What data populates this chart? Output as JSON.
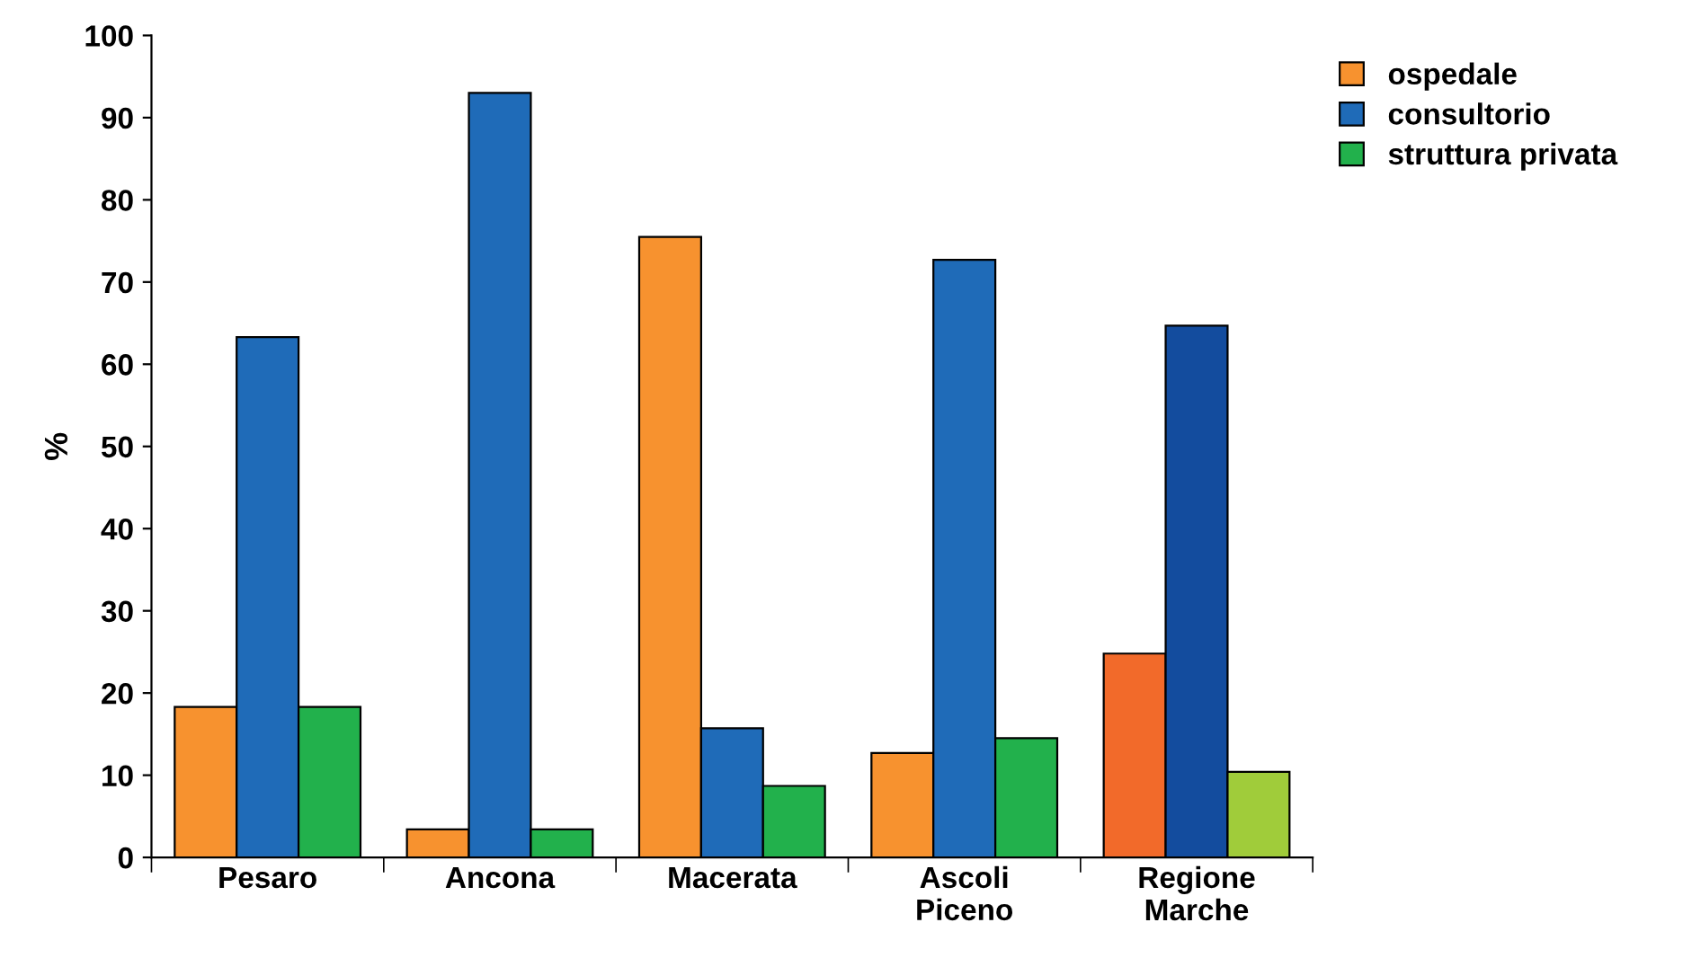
{
  "chart_data": {
    "type": "bar",
    "ylabel": "%",
    "categories": [
      "Pesaro",
      "Ancona",
      "Macerata",
      "Ascoli\nPiceno",
      "Regione\nMarche"
    ],
    "series": [
      {
        "name": "ospedale",
        "color": "#f7922f",
        "colors": [
          "#f7922f",
          "#f7922f",
          "#f7922f",
          "#f7922f",
          "#f26a2a"
        ],
        "values": [
          18.3,
          3.4,
          75.5,
          12.7,
          24.8
        ]
      },
      {
        "name": "consultorio",
        "color": "#1f6bb8",
        "colors": [
          "#1f6bb8",
          "#1f6bb8",
          "#1f6bb8",
          "#1f6bb8",
          "#134c9e"
        ],
        "values": [
          63.3,
          93.0,
          15.7,
          72.7,
          64.7
        ]
      },
      {
        "name": "struttura privata",
        "color": "#22b14c",
        "colors": [
          "#22b14c",
          "#22b14c",
          "#22b14c",
          "#22b14c",
          "#a0cc3a"
        ],
        "values": [
          18.3,
          3.4,
          8.7,
          14.5,
          10.4
        ]
      }
    ],
    "ylim": [
      0,
      100
    ],
    "yticks": [
      0,
      10,
      20,
      30,
      40,
      50,
      60,
      70,
      80,
      90,
      100
    ],
    "grid": false,
    "legend": "top right"
  }
}
